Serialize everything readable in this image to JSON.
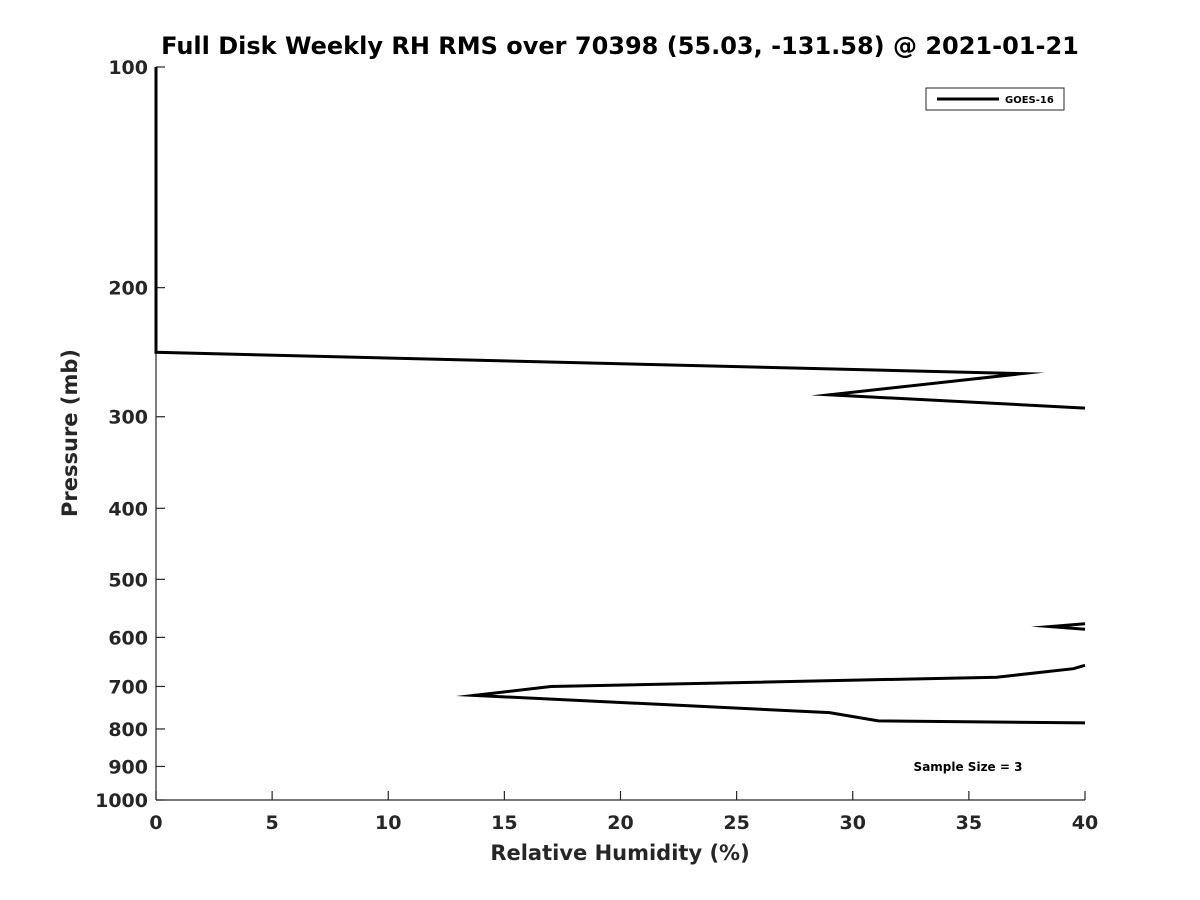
{
  "chart_data": {
    "type": "line",
    "title": "Full Disk Weekly RH RMS over 70398 (55.03, -131.58) @ 2021-01-21",
    "xlabel": "Relative Humidity (%)",
    "ylabel": "Pressure (mb)",
    "xlim": [
      0,
      40
    ],
    "ylim": [
      100,
      1000
    ],
    "y_scale": "log",
    "y_reversed": true,
    "grid": false,
    "legend_position": "top-right",
    "x_ticks": [
      0,
      5,
      10,
      15,
      20,
      25,
      30,
      35,
      40
    ],
    "y_ticks": [
      100,
      200,
      300,
      400,
      500,
      600,
      700,
      800,
      900,
      1000
    ],
    "series": [
      {
        "name": "GOES-16",
        "color": "#000000",
        "segments": [
          {
            "x": [
              0,
              0,
              0,
              0,
              37.3,
              29,
              40
            ],
            "y": [
              100,
              150,
              200,
              245,
              262,
              280,
              292
            ]
          },
          {
            "x": [
              40,
              38.5,
              40
            ],
            "y": [
              575,
              580,
              585
            ]
          },
          {
            "x": [
              40,
              39.5,
              36.2,
              17,
              13.7,
              29,
              31.1,
              40
            ],
            "y": [
              655,
              662,
              680,
              700,
              720,
              760,
              780,
              785
            ]
          }
        ]
      }
    ],
    "annotations": [
      "Sample Size = 3"
    ]
  }
}
